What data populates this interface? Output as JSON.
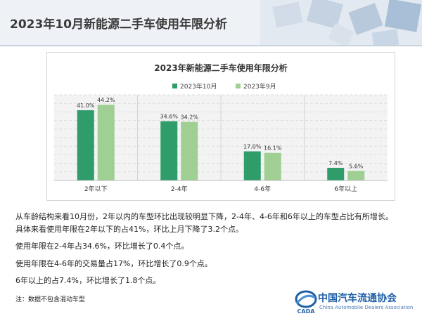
{
  "header": {
    "title": "2023年10月新能源二手车使用年限分析"
  },
  "chart_data": {
    "type": "bar",
    "title": "2023年新能源二手车使用年限分析",
    "categories": [
      "2年以下",
      "2-4年",
      "4-6年",
      "6年以上"
    ],
    "series": [
      {
        "name": "2023年10月",
        "values": [
          41.0,
          34.6,
          17.0,
          7.4
        ],
        "labels": [
          "41.0%",
          "34.6%",
          "17.0%",
          "7.4%"
        ],
        "color": "#2e9d6a"
      },
      {
        "name": "2023年9月",
        "values": [
          44.2,
          34.2,
          16.1,
          5.6
        ],
        "labels": [
          "44.2%",
          "34.2%",
          "16.1%",
          "5.6%"
        ],
        "color": "#9fcf92"
      }
    ],
    "ylim": [
      0,
      50
    ],
    "xlabel": "",
    "ylabel": "",
    "legend": "top",
    "grid": true
  },
  "paragraphs": [
    "从车龄结构来看10月份，2年以内的车型环比出现较明显下降，2-4年、4-6年和6年以上的车型占比有所增长。",
    "具体来看使用年限在2年以下的占41%，环比上月下降了3.2个点。",
    "使用年限在2-4年占34.6%，环比增长了0.4个点。",
    "使用年限在4-6年的交易量占17%，环比增长了0.9个点。",
    "6年以上的占7.4%，环比增长了1.8个点。"
  ],
  "note": "注：数据不包含混动车型",
  "logo": {
    "name_cn": "中国汽车流通协会",
    "name_en": "China Automobile Dealers Association",
    "mark_text": "CADA",
    "color": "#1f5fa8"
  }
}
